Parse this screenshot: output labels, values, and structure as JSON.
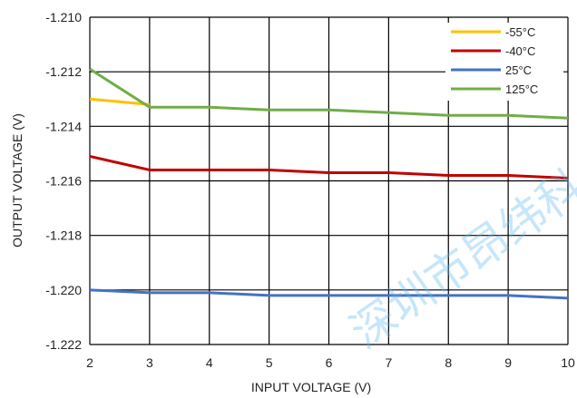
{
  "chart_data": {
    "type": "line",
    "xlabel": "INPUT VOLTAGE (V)",
    "ylabel": "OUTPUT VOLTAGE (V)",
    "xlim": [
      2,
      10
    ],
    "ylim": [
      -1.222,
      -1.21
    ],
    "x_ticks": [
      "2",
      "3",
      "4",
      "5",
      "6",
      "7",
      "8",
      "9",
      "10"
    ],
    "y_ticks": [
      "-1.210",
      "-1.212",
      "-1.214",
      "-1.216",
      "-1.218",
      "-1.220",
      "-1.222"
    ],
    "grid": true,
    "legend_position": "top-right",
    "series": [
      {
        "name": "-55°C",
        "color": "#FFC000",
        "x": [
          2,
          3
        ],
        "y": [
          -1.213,
          -1.2132
        ]
      },
      {
        "name": "-40°C",
        "color": "#C00000",
        "x": [
          2,
          3,
          4,
          5,
          6,
          7,
          8,
          9,
          10
        ],
        "y": [
          -1.2151,
          -1.2156,
          -1.2156,
          -1.2156,
          -1.2157,
          -1.2157,
          -1.2158,
          -1.2158,
          -1.2159
        ]
      },
      {
        "name": "25°C",
        "color": "#4472C4",
        "x": [
          2,
          3,
          4,
          5,
          6,
          7,
          8,
          9,
          10
        ],
        "y": [
          -1.22,
          -1.2201,
          -1.2201,
          -1.2202,
          -1.2202,
          -1.2202,
          -1.2202,
          -1.2202,
          -1.2203
        ]
      },
      {
        "name": "125°C",
        "color": "#70AD47",
        "x": [
          2,
          3,
          4,
          5,
          6,
          7,
          8,
          9,
          10
        ],
        "y": [
          -1.2119,
          -1.2133,
          -1.2133,
          -1.2134,
          -1.2134,
          -1.2135,
          -1.2136,
          -1.2136,
          -1.2137
        ]
      }
    ]
  },
  "watermark": {
    "text": "深圳市昂纬科",
    "color": "#5BB8F0"
  }
}
